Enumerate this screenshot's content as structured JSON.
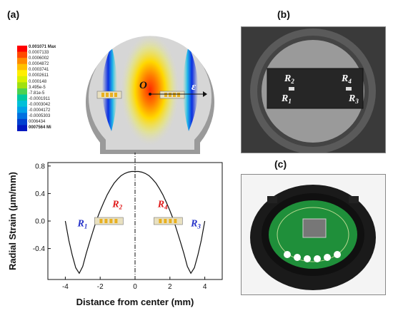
{
  "panels": {
    "a": "(a)",
    "b": "(b)",
    "c": "(c)"
  },
  "legend": {
    "values": [
      "0.001071 Max",
      "0.0007133",
      "0.0006002",
      "0.0004872",
      "0.0003741",
      "0.0002611",
      "0.000148",
      "3.495e-5",
      "-7.81e-5",
      "-0.0001911",
      "-0.0003042",
      "-0.0004172",
      "-0.0005303",
      "0006434",
      "0007564 Mi"
    ],
    "colors": [
      "#ff0000",
      "#ff4a00",
      "#ff8a00",
      "#ffc000",
      "#ffee00",
      "#d8f000",
      "#a0e010",
      "#4cd250",
      "#00c8a0",
      "#00c0d8",
      "#00a0e8",
      "#0070e0",
      "#0040d0",
      "#0018c0"
    ]
  },
  "fea": {
    "origin_label": "O",
    "strain_label": "ε"
  },
  "chart_data": {
    "type": "line",
    "ylabel": "Radial Strain (μm/mm)",
    "xlabel": "Distance from center (mm)",
    "xlim": [
      -5,
      5
    ],
    "ylim": [
      -0.85,
      0.85
    ],
    "xticks": [
      "-4",
      "-2",
      "0",
      "2",
      "4"
    ],
    "yticks": [
      "-0.4",
      "0.0",
      "0.4",
      "0.8"
    ],
    "x": [
      -4,
      -3.8,
      -3.6,
      -3.4,
      -3.2,
      -3.0,
      -2.8,
      -2.6,
      -2.4,
      -2.2,
      -2.0,
      -1.8,
      -1.6,
      -1.4,
      -1.2,
      -1.0,
      -0.8,
      -0.6,
      -0.4,
      -0.2,
      0,
      0.2,
      0.4,
      0.6,
      0.8,
      1.0,
      1.2,
      1.4,
      1.6,
      1.8,
      2.0,
      2.2,
      2.4,
      2.6,
      2.8,
      3.0,
      3.2,
      3.4,
      3.6,
      3.8,
      4
    ],
    "y": [
      0.0,
      -0.28,
      -0.5,
      -0.68,
      -0.76,
      -0.66,
      -0.47,
      -0.3,
      -0.14,
      0.02,
      0.15,
      0.27,
      0.38,
      0.47,
      0.55,
      0.61,
      0.66,
      0.69,
      0.71,
      0.72,
      0.72,
      0.72,
      0.71,
      0.69,
      0.66,
      0.61,
      0.55,
      0.47,
      0.38,
      0.27,
      0.15,
      0.02,
      -0.14,
      -0.3,
      -0.47,
      -0.66,
      -0.76,
      -0.68,
      -0.5,
      -0.28,
      0.0
    ],
    "annotations": [
      {
        "text": "R",
        "sub": "1",
        "color": "#2330c8"
      },
      {
        "text": "R",
        "sub": "2",
        "color": "#e01818"
      },
      {
        "text": "R",
        "sub": "3",
        "color": "#2330c8"
      },
      {
        "text": "R",
        "sub": "4",
        "color": "#e01818"
      }
    ]
  },
  "photo_b": {
    "labels": [
      {
        "text": "R",
        "sub": "2"
      },
      {
        "text": "R",
        "sub": "4"
      },
      {
        "text": "R",
        "sub": "1"
      },
      {
        "text": "R",
        "sub": "3"
      }
    ]
  }
}
